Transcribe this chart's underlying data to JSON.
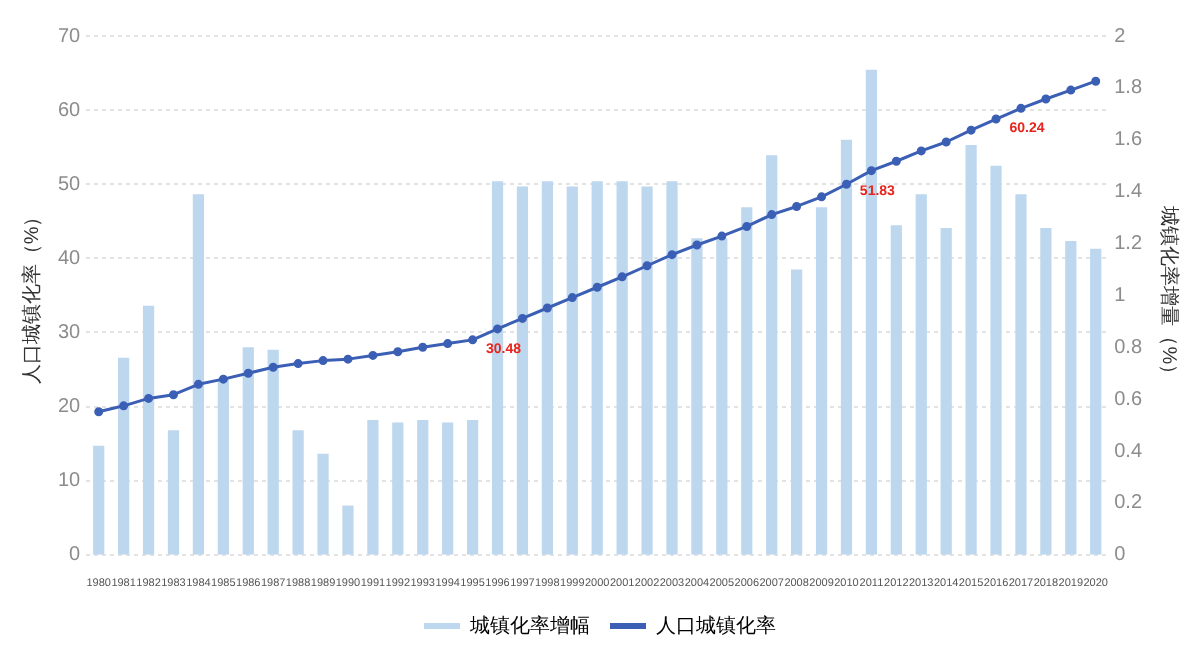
{
  "chart_data": {
    "type": "bar",
    "ylabel": "人口城镇化率（%）",
    "y2label": "城镇化率增量（%）",
    "categories": [
      "1980",
      "1981",
      "1982",
      "1983",
      "1984",
      "1985",
      "1986",
      "1987",
      "1988",
      "1989",
      "1990",
      "1991",
      "1992",
      "1993",
      "1994",
      "1995",
      "1996",
      "1997",
      "1998",
      "1999",
      "2000",
      "2001",
      "2002",
      "2003",
      "2004",
      "2005",
      "2006",
      "2007",
      "2008",
      "2009",
      "2010",
      "2011",
      "2012",
      "2013",
      "2014",
      "2015",
      "2016",
      "2017",
      "2018",
      "2019",
      "2020"
    ],
    "series": [
      {
        "name": "城镇化率增幅",
        "axis": "y2",
        "color": "#bdd7ee",
        "values": [
          0.42,
          0.76,
          0.96,
          0.48,
          1.39,
          0.68,
          0.8,
          0.79,
          0.48,
          0.39,
          0.19,
          0.52,
          0.51,
          0.52,
          0.51,
          0.52,
          1.44,
          1.42,
          1.44,
          1.42,
          1.44,
          1.44,
          1.42,
          1.44,
          1.22,
          1.22,
          1.34,
          1.54,
          1.1,
          1.34,
          1.6,
          1.87,
          1.27,
          1.39,
          1.26,
          1.58,
          1.5,
          1.39,
          1.26,
          1.21,
          1.18
        ]
      },
      {
        "name": "人口城镇化率",
        "type": "line",
        "color": "#3b5fb5",
        "marker": "circle",
        "values": [
          19.3,
          20.1,
          21.1,
          21.6,
          23.0,
          23.7,
          24.5,
          25.3,
          25.8,
          26.2,
          26.4,
          26.9,
          27.4,
          28.0,
          28.5,
          29.0,
          30.48,
          31.9,
          33.3,
          34.7,
          36.1,
          37.5,
          39.0,
          40.5,
          41.8,
          43.0,
          44.3,
          45.9,
          47.0,
          48.3,
          50.0,
          51.83,
          53.1,
          54.5,
          55.7,
          57.3,
          58.8,
          60.24,
          61.5,
          62.7,
          63.9
        ],
        "value_labels": [
          null,
          null,
          null,
          null,
          null,
          null,
          null,
          null,
          null,
          null,
          null,
          null,
          null,
          null,
          null,
          null,
          "30.48",
          null,
          null,
          null,
          null,
          null,
          null,
          null,
          null,
          null,
          null,
          null,
          null,
          null,
          null,
          "51.83",
          null,
          null,
          null,
          null,
          null,
          "60.24",
          null,
          null,
          null
        ]
      }
    ],
    "ylim": [
      0,
      70
    ],
    "yticks": [
      0,
      10,
      20,
      30,
      40,
      50,
      60,
      70
    ],
    "y2lim": [
      0,
      2
    ],
    "y2ticks": [
      0,
      0.2,
      0.4,
      0.6,
      0.8,
      1,
      1.2,
      1.4,
      1.6,
      1.8,
      2
    ],
    "grid": "y",
    "legend": "bottom"
  }
}
